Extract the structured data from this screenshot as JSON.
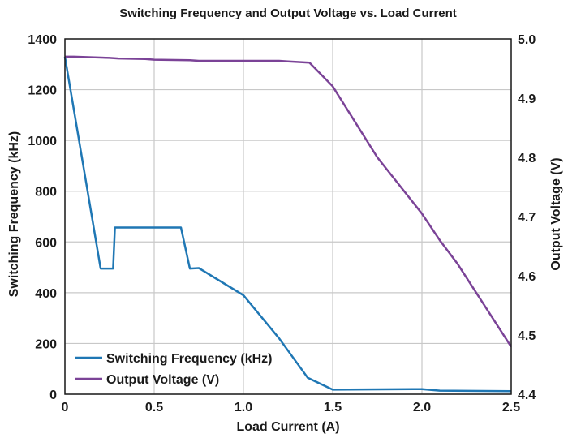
{
  "chart_data": {
    "type": "line",
    "title": "Switching Frequency and Output Voltage vs. Load Current",
    "xlabel": "Load Current (A)",
    "ylabel": "Switching Frequency (kHz)",
    "ylabel_right": "Output Voltage (V)",
    "xlim": [
      0,
      2.5
    ],
    "ylim": [
      0,
      1400
    ],
    "ylim_right": [
      4.4,
      5.0
    ],
    "xticks": [
      "0",
      "0.5",
      "1.0",
      "1.5",
      "2.0",
      "2.5"
    ],
    "yticks": [
      "0",
      "200",
      "400",
      "600",
      "800",
      "1000",
      "1200",
      "1400"
    ],
    "yticks_right": [
      "4.4",
      "4.5",
      "4.6",
      "4.7",
      "4.8",
      "4.9",
      "5.0"
    ],
    "grid": true,
    "legend_position": "bottom-left",
    "series": [
      {
        "name": "Switching Frequency (kHz)",
        "axis": "left",
        "color": "#1f77b4",
        "x": [
          0,
          0.2,
          0.27,
          0.28,
          0.65,
          0.7,
          0.75,
          1.0,
          1.2,
          1.36,
          1.5,
          2.0,
          2.1,
          2.5
        ],
        "y": [
          1330,
          495,
          495,
          657,
          657,
          495,
          497,
          390,
          220,
          65,
          18,
          20,
          14,
          12
        ]
      },
      {
        "name": "Output Voltage (V)",
        "axis": "right",
        "color": "#7b4397",
        "x": [
          0,
          0.05,
          0.25,
          0.3,
          0.45,
          0.5,
          0.7,
          0.75,
          1.0,
          1.2,
          1.25,
          1.37,
          1.5,
          1.75,
          2.0,
          2.1,
          2.2,
          2.5
        ],
        "y": [
          4.97,
          4.97,
          4.968,
          4.967,
          4.966,
          4.965,
          4.964,
          4.963,
          4.963,
          4.963,
          4.962,
          4.96,
          4.92,
          4.8,
          4.705,
          4.66,
          4.62,
          4.48
        ]
      }
    ]
  }
}
